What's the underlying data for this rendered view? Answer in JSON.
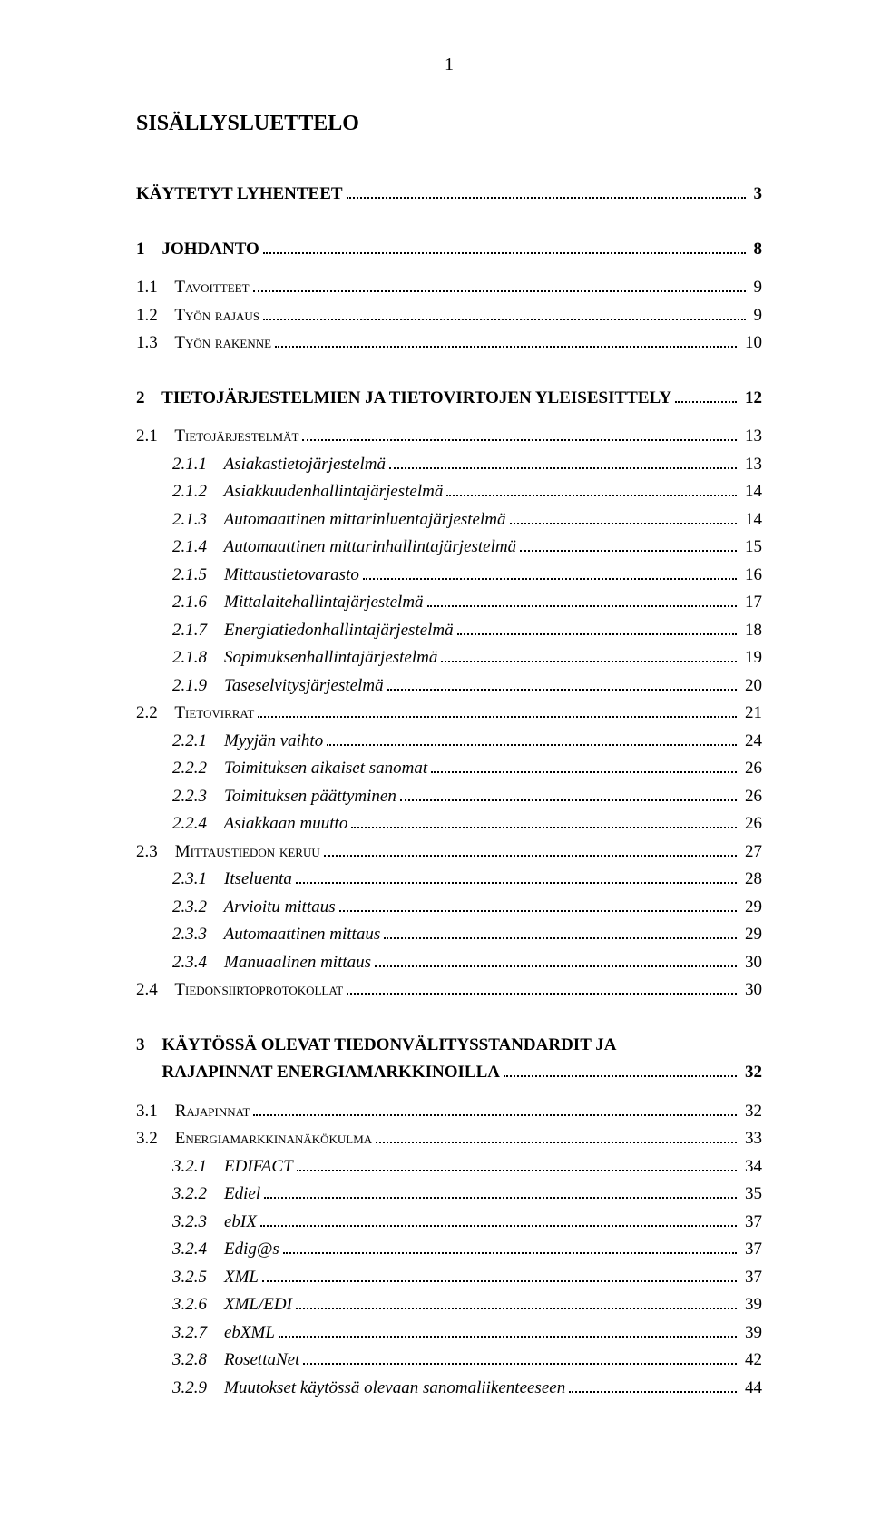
{
  "pageNumber": "1",
  "mainTitle": "SISÄLLYSLUETTELO",
  "entries": [
    {
      "kind": "line",
      "style": "bold",
      "indent": 1,
      "label": "KÄYTETYT LYHENTEET",
      "page": "3"
    },
    {
      "kind": "spacer",
      "size": "md"
    },
    {
      "kind": "line",
      "style": "bold",
      "indent": 1,
      "label": "1    JOHDANTO",
      "page": "8"
    },
    {
      "kind": "spacer",
      "size": "sm"
    },
    {
      "kind": "line",
      "style": "smallcaps",
      "indent": 1,
      "label": "1.1    Tavoitteet",
      "page": "9"
    },
    {
      "kind": "line",
      "style": "smallcaps",
      "indent": 1,
      "label": "1.2    Työn rajaus",
      "page": "9"
    },
    {
      "kind": "line",
      "style": "smallcaps",
      "indent": 1,
      "label": "1.3    Työn rakenne",
      "page": "10"
    },
    {
      "kind": "spacer",
      "size": "md"
    },
    {
      "kind": "line",
      "style": "bold",
      "indent": 1,
      "label": "2    TIETOJÄRJESTELMIEN JA TIETOVIRTOJEN YLEISESITTELY",
      "page": "12"
    },
    {
      "kind": "spacer",
      "size": "sm"
    },
    {
      "kind": "line",
      "style": "smallcaps",
      "indent": 1,
      "label": "2.1    Tietojärjestelmät",
      "page": "13"
    },
    {
      "kind": "line",
      "style": "italic",
      "indent": 2,
      "label": "2.1.1    Asiakastietojärjestelmä",
      "page": "13"
    },
    {
      "kind": "line",
      "style": "italic",
      "indent": 2,
      "label": "2.1.2    Asiakkuudenhallintajärjestelmä",
      "page": "14"
    },
    {
      "kind": "line",
      "style": "italic",
      "indent": 2,
      "label": "2.1.3    Automaattinen mittarinluentajärjestelmä",
      "page": "14"
    },
    {
      "kind": "line",
      "style": "italic",
      "indent": 2,
      "label": "2.1.4    Automaattinen mittarinhallintajärjestelmä",
      "page": "15"
    },
    {
      "kind": "line",
      "style": "italic",
      "indent": 2,
      "label": "2.1.5    Mittaustietovarasto",
      "page": "16"
    },
    {
      "kind": "line",
      "style": "italic",
      "indent": 2,
      "label": "2.1.6    Mittalaitehallintajärjestelmä",
      "page": "17"
    },
    {
      "kind": "line",
      "style": "italic",
      "indent": 2,
      "label": "2.1.7    Energiatiedonhallintajärjestelmä",
      "page": "18"
    },
    {
      "kind": "line",
      "style": "italic",
      "indent": 2,
      "label": "2.1.8    Sopimuksenhallintajärjestelmä",
      "page": "19"
    },
    {
      "kind": "line",
      "style": "italic",
      "indent": 2,
      "label": "2.1.9    Taseselvitysjärjestelmä",
      "page": "20"
    },
    {
      "kind": "line",
      "style": "smallcaps",
      "indent": 1,
      "label": "2.2    Tietovirrat",
      "page": "21"
    },
    {
      "kind": "line",
      "style": "italic",
      "indent": 2,
      "label": "2.2.1    Myyjän vaihto",
      "page": "24"
    },
    {
      "kind": "line",
      "style": "italic",
      "indent": 2,
      "label": "2.2.2    Toimituksen aikaiset sanomat",
      "page": "26"
    },
    {
      "kind": "line",
      "style": "italic",
      "indent": 2,
      "label": "2.2.3    Toimituksen päättyminen",
      "page": "26"
    },
    {
      "kind": "line",
      "style": "italic",
      "indent": 2,
      "label": "2.2.4    Asiakkaan muutto",
      "page": "26"
    },
    {
      "kind": "line",
      "style": "smallcaps",
      "indent": 1,
      "label": "2.3    Mittaustiedon keruu",
      "page": "27"
    },
    {
      "kind": "line",
      "style": "italic",
      "indent": 2,
      "label": "2.3.1    Itseluenta",
      "page": "28"
    },
    {
      "kind": "line",
      "style": "italic",
      "indent": 2,
      "label": "2.3.2    Arvioitu mittaus",
      "page": "29"
    },
    {
      "kind": "line",
      "style": "italic",
      "indent": 2,
      "label": "2.3.3    Automaattinen mittaus",
      "page": "29"
    },
    {
      "kind": "line",
      "style": "italic",
      "indent": 2,
      "label": "2.3.4    Manuaalinen mittaus",
      "page": "30"
    },
    {
      "kind": "line",
      "style": "smallcaps",
      "indent": 1,
      "label": "2.4    Tiedonsiirtoprotokollat",
      "page": "30"
    },
    {
      "kind": "spacer",
      "size": "md"
    },
    {
      "kind": "line",
      "style": "bold",
      "indent": 1,
      "label": "3    KÄYTÖSSÄ OLEVAT TIEDONVÄLITYSSTANDARDIT JA",
      "page": null
    },
    {
      "kind": "line",
      "style": "bold",
      "indent": 1,
      "label": "      RAJAPINNAT ENERGIAMARKKINOILLA",
      "page": "32"
    },
    {
      "kind": "spacer",
      "size": "sm"
    },
    {
      "kind": "line",
      "style": "smallcaps",
      "indent": 1,
      "label": "3.1    Rajapinnat",
      "page": "32"
    },
    {
      "kind": "line",
      "style": "smallcaps",
      "indent": 1,
      "label": "3.2    Energiamarkkinanäkökulma",
      "page": "33"
    },
    {
      "kind": "line",
      "style": "italic",
      "indent": 2,
      "label": "3.2.1    EDIFACT",
      "page": "34"
    },
    {
      "kind": "line",
      "style": "italic",
      "indent": 2,
      "label": "3.2.2    Ediel",
      "page": "35"
    },
    {
      "kind": "line",
      "style": "italic",
      "indent": 2,
      "label": "3.2.3    ebIX",
      "page": "37"
    },
    {
      "kind": "line",
      "style": "italic",
      "indent": 2,
      "label": "3.2.4    Edig@s",
      "page": "37"
    },
    {
      "kind": "line",
      "style": "italic",
      "indent": 2,
      "label": "3.2.5    XML",
      "page": "37"
    },
    {
      "kind": "line",
      "style": "italic",
      "indent": 2,
      "label": "3.2.6    XML/EDI",
      "page": "39"
    },
    {
      "kind": "line",
      "style": "italic",
      "indent": 2,
      "label": "3.2.7    ebXML",
      "page": "39"
    },
    {
      "kind": "line",
      "style": "italic",
      "indent": 2,
      "label": "3.2.8    RosettaNet",
      "page": "42"
    },
    {
      "kind": "line",
      "style": "italic",
      "indent": 2,
      "label": "3.2.9    Muutokset käytössä olevaan sanomaliikenteeseen",
      "page": "44"
    }
  ]
}
